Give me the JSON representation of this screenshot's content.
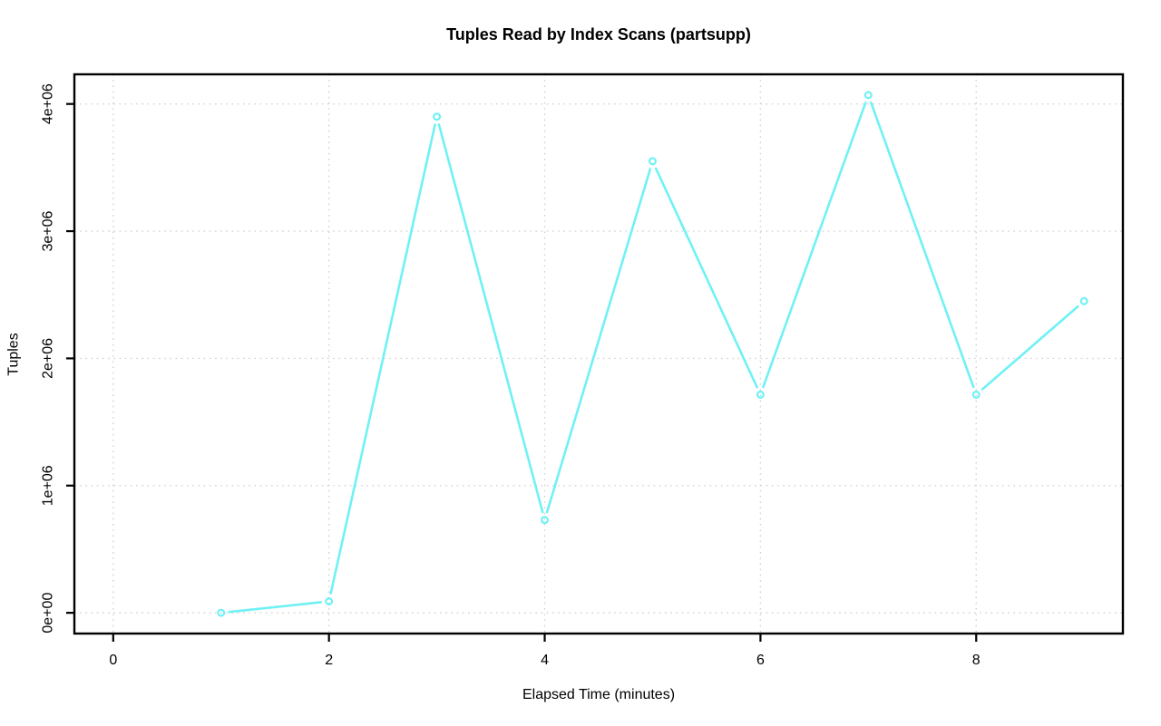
{
  "chart_data": {
    "type": "line",
    "title": "Tuples Read by Index Scans (partsupp)",
    "xlabel": "Elapsed Time (minutes)",
    "ylabel": "Tuples",
    "x": [
      1,
      2,
      3,
      4,
      5,
      6,
      7,
      8,
      9
    ],
    "values": [
      0,
      90000,
      3900000,
      730000,
      3550000,
      1715000,
      4070000,
      1715000,
      2450000
    ],
    "xticks": [
      0,
      2,
      4,
      6,
      8
    ],
    "xtick_labels": [
      "0",
      "2",
      "4",
      "6",
      "8"
    ],
    "yticks": [
      0,
      1000000,
      2000000,
      3000000,
      4000000
    ],
    "ytick_labels": [
      "0e+00",
      "1e+06",
      "2e+06",
      "3e+06",
      "4e+06"
    ],
    "xlim": [
      -0.36,
      9.36
    ],
    "ylim": [
      -163000,
      4233000
    ],
    "grid": true,
    "grid_style": "dotted",
    "legend_position": "none",
    "marker": "open-circle",
    "line_style": "solid",
    "series_color": "#70f1f5",
    "grid_color": "#d2d2d2",
    "axis_color": "#000000",
    "background": "#ffffff"
  }
}
